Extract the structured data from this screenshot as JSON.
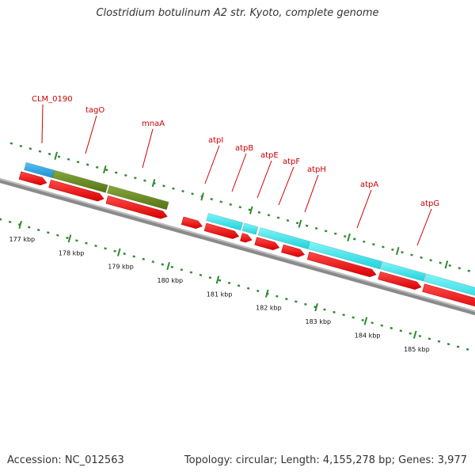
{
  "title": "Clostridium botulinum A2 str. Kyoto, complete genome",
  "footer": {
    "accession": "Accession: NC_012563",
    "summary": "Topology: circular; Length: 4,155,278 bp; Genes: 3,977"
  },
  "colors": {
    "backbone": "#8a8a8a",
    "cds": "#ff1a1a",
    "cog_blue": "#2ea6e6",
    "cog_olive": "#6b8c23",
    "cog_cyan": "#2ee6ee",
    "ticks": "#2f8a2f",
    "label": "#cc0000"
  },
  "scale": {
    "unit": "kbp",
    "labels": [
      "177 kbp",
      "178 kbp",
      "179 kbp",
      "180 kbp",
      "181 kbp",
      "182 kbp",
      "183 kbp",
      "184 kbp",
      "185 kbp"
    ]
  },
  "genes": [
    {
      "name": "CLM_0190",
      "cog": "blue"
    },
    {
      "name": "tagO",
      "cog": "olive"
    },
    {
      "name": "mnaA",
      "cog": "olive"
    },
    {
      "name": "atpI",
      "cog": "none"
    },
    {
      "name": "atpB",
      "cog": "cyan"
    },
    {
      "name": "atpE",
      "cog": "cyan"
    },
    {
      "name": "atpF",
      "cog": "cyan"
    },
    {
      "name": "atpH",
      "cog": "cyan"
    },
    {
      "name": "atpA",
      "cog": "cyan"
    },
    {
      "name": "atpG",
      "cog": "cyan"
    }
  ]
}
